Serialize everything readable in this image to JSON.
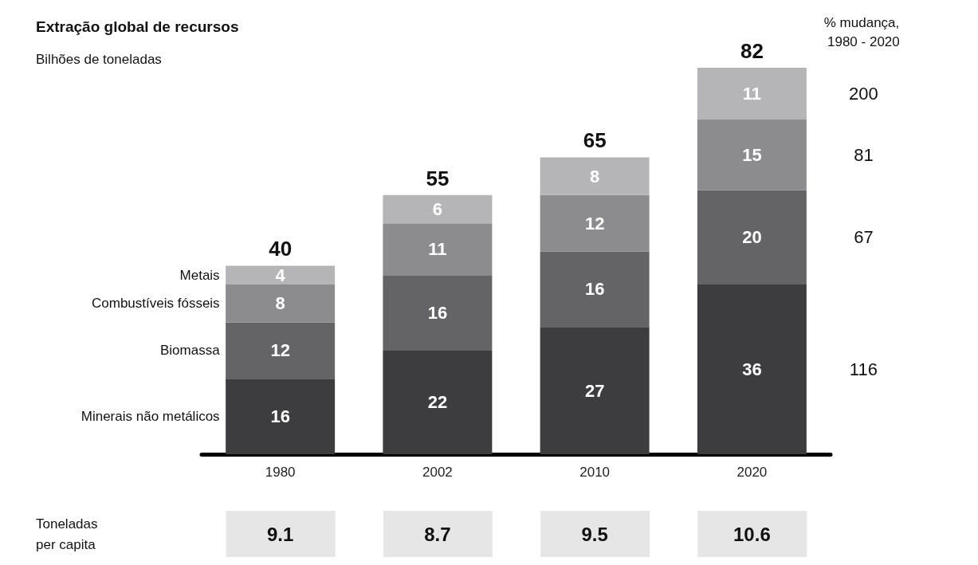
{
  "chart_data": {
    "type": "bar",
    "title": "Extração global de recursos",
    "subtitle": "Bilhões de toneladas",
    "categories": [
      "1980",
      "2002",
      "2010",
      "2020"
    ],
    "stacked": true,
    "data_labels": true,
    "totals": [
      "40",
      "55",
      "65",
      "82"
    ],
    "series": [
      {
        "name": "Minerais não metálicos",
        "color": "#3d3d3f",
        "values": [
          16,
          22,
          27,
          36
        ]
      },
      {
        "name": "Biomassa",
        "color": "#646466",
        "values": [
          12,
          16,
          16,
          20
        ]
      },
      {
        "name": "Combustíveis fósseis",
        "color": "#8c8c8e",
        "values": [
          8,
          11,
          12,
          15
        ]
      },
      {
        "name": "Metais",
        "color": "#b5b5b7",
        "values": [
          4,
          6,
          8,
          11
        ]
      }
    ],
    "annotations": [
      "% mudança, 1980 - 2020",
      "200",
      "81",
      "67",
      "116",
      "Toneladas per capita",
      "9.1",
      "8.7",
      "9.5",
      "10.6"
    ]
  }
}
